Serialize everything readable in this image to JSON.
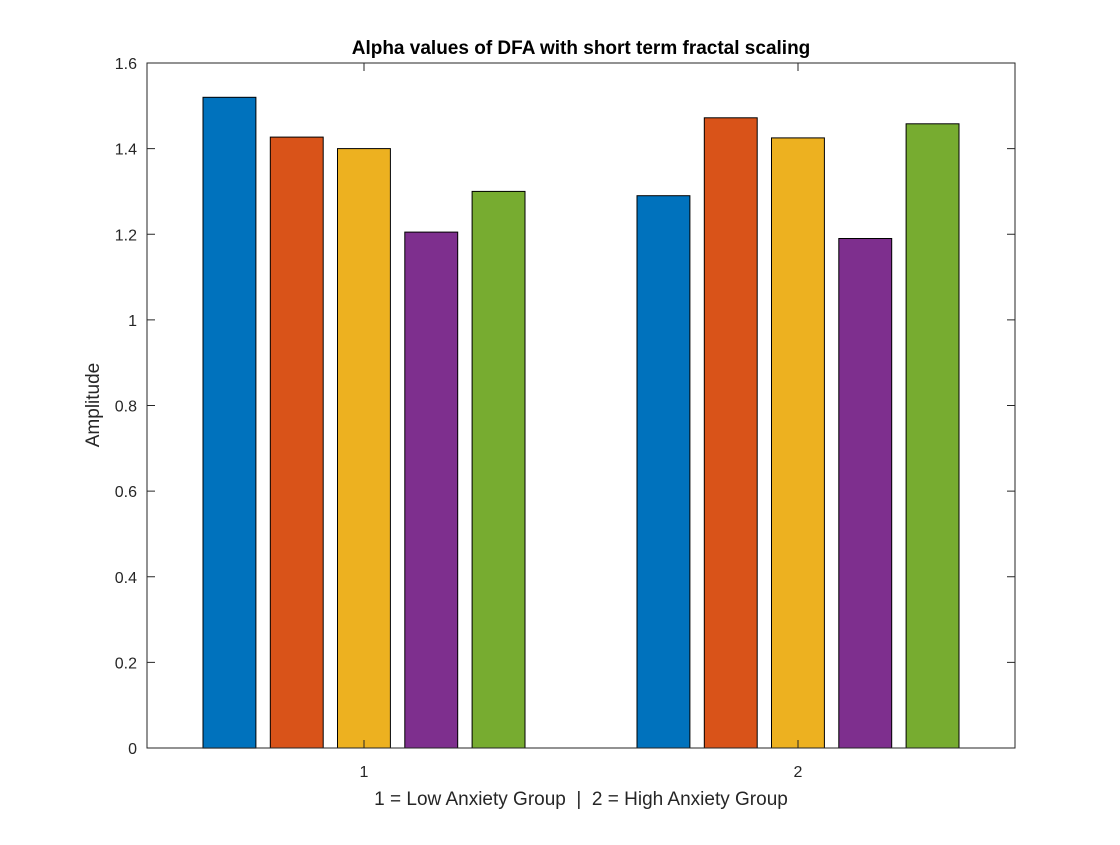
{
  "chart_data": {
    "type": "bar",
    "title": "Alpha values of DFA with short term fractal scaling",
    "xlabel": "1 = Low Anxiety Group  |  2 = High Anxiety Group",
    "ylabel": "Amplitude",
    "categories": [
      "1",
      "2"
    ],
    "ylim": [
      0,
      1.6
    ],
    "yticks": [
      "0",
      "0.2",
      "0.4",
      "0.6",
      "0.8",
      "1",
      "1.2",
      "1.4",
      "1.6"
    ],
    "grid": false,
    "legend": "none",
    "series": [
      {
        "color": "#0072BD",
        "values": [
          1.52,
          1.29
        ]
      },
      {
        "color": "#D95319",
        "values": [
          1.427,
          1.472
        ]
      },
      {
        "color": "#EDB120",
        "values": [
          1.4,
          1.425
        ]
      },
      {
        "color": "#7E2F8E",
        "values": [
          1.205,
          1.19
        ]
      },
      {
        "color": "#77AC30",
        "values": [
          1.3,
          1.458
        ]
      }
    ]
  }
}
